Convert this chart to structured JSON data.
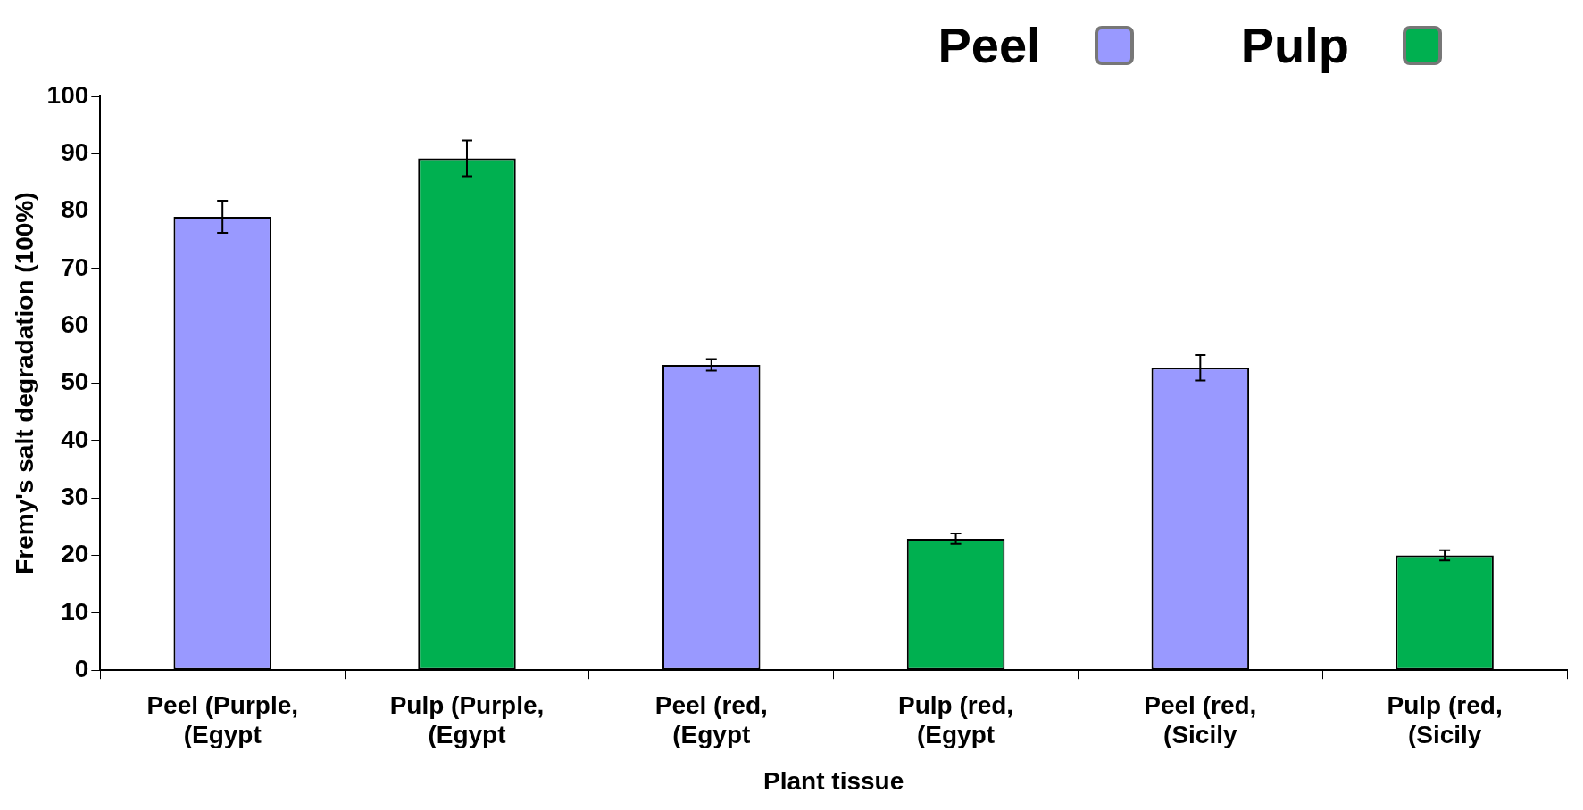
{
  "chart_data": {
    "type": "bar",
    "xlabel": "Plant tissue",
    "ylabel": "Fremy's salt degradation (100%)",
    "categories": [
      "Peel (Purple, (Egypt",
      "Pulp (Purple, (Egypt",
      "Peel (red, (Egypt",
      "Pulp (red, (Egypt",
      "Peel (red, (Sicily",
      "Pulp (red, (Sicily"
    ],
    "series": [
      {
        "name": "Peel",
        "color": "#9999ff",
        "values": [
          79,
          null,
          53.2,
          null,
          52.7,
          null
        ],
        "errors": [
          2.8,
          null,
          1,
          null,
          2.2,
          null
        ]
      },
      {
        "name": "Pulp",
        "color": "#00b050",
        "values": [
          null,
          89.2,
          null,
          22.9,
          null,
          20
        ],
        "errors": [
          null,
          3.1,
          null,
          0.9,
          null,
          0.9
        ]
      }
    ],
    "ylim": [
      0,
      100
    ],
    "yticks": [
      0,
      10,
      20,
      30,
      40,
      50,
      60,
      70,
      80,
      90,
      100
    ],
    "grid": false,
    "legend": "top right"
  }
}
